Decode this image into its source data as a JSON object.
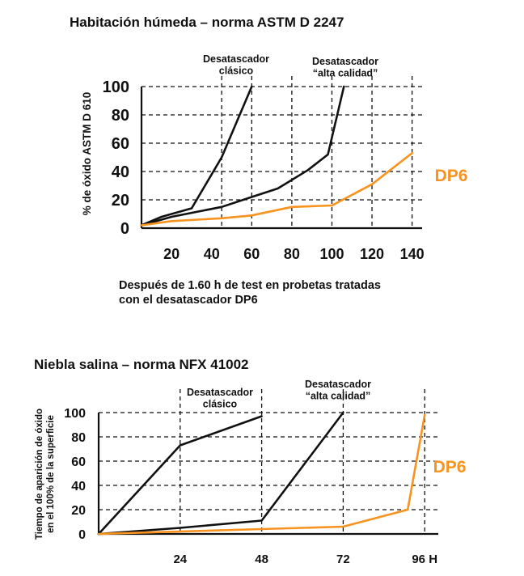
{
  "colors": {
    "dark": "#111111",
    "dp6": "#f7931e"
  },
  "chart_data": [
    {
      "type": "line",
      "title": "Habitación húmeda – norma ASTM D 2247",
      "ylabel": "% de óxido ASTM D 610",
      "xlabel_lines": [
        "Después de 1.60 h de test en probetas tratadas",
        "con el desatascador DP6"
      ],
      "x_ticks": [
        "20",
        "40",
        "60",
        "80",
        "100",
        "120",
        "140"
      ],
      "y_ticks": [
        "0",
        "20",
        "40",
        "60",
        "80",
        "100"
      ],
      "xlim": [
        5,
        145
      ],
      "ylim": [
        0,
        100
      ],
      "grid": true,
      "series": [
        {
          "name_lines": [
            "Desatascador",
            "clásico"
          ],
          "color": "#111111",
          "points": [
            [
              5,
              2
            ],
            [
              15,
              8
            ],
            [
              30,
              14
            ],
            [
              45,
              50
            ],
            [
              60,
              100
            ]
          ]
        },
        {
          "name_lines": [
            "Desatascador",
            "“alta calidad”"
          ],
          "color": "#111111",
          "points": [
            [
              5,
              2
            ],
            [
              20,
              8
            ],
            [
              45,
              15
            ],
            [
              60,
              22
            ],
            [
              73,
              28
            ],
            [
              88,
              41
            ],
            [
              98,
              52
            ],
            [
              106,
              100
            ]
          ]
        },
        {
          "name_lines": [
            "DP6"
          ],
          "color": "#f7931e",
          "points": [
            [
              5,
              2
            ],
            [
              20,
              5
            ],
            [
              45,
              7
            ],
            [
              60,
              9
            ],
            [
              80,
              15
            ],
            [
              100,
              16
            ],
            [
              120,
              31
            ],
            [
              140,
              53
            ]
          ]
        }
      ]
    },
    {
      "type": "line",
      "title": "Niebla salina – norma NFX 41002",
      "ylabel_lines": [
        "Tiempo de aparición de óxido",
        "en el 100% de la superficie"
      ],
      "x_ticks": [
        "24",
        "48",
        "72",
        "96 H"
      ],
      "y_ticks": [
        "0",
        "20",
        "40",
        "60",
        "80",
        "100"
      ],
      "xlim": [
        0,
        100
      ],
      "ylim": [
        0,
        100
      ],
      "grid": true,
      "series": [
        {
          "name_lines": [
            "Desatascador",
            "clásico"
          ],
          "color": "#111111",
          "points": [
            [
              0,
              0
            ],
            [
              24,
              73
            ],
            [
              48,
              97
            ]
          ]
        },
        {
          "name_lines": [
            "Desatascador",
            "“alta calidad”"
          ],
          "color": "#111111",
          "points": [
            [
              0,
              0
            ],
            [
              24,
              5
            ],
            [
              48,
              11
            ],
            [
              72,
              100
            ]
          ]
        },
        {
          "name_lines": [
            "DP6"
          ],
          "color": "#f7931e",
          "points": [
            [
              0,
              0
            ],
            [
              48,
              4
            ],
            [
              72,
              6
            ],
            [
              91,
              20
            ],
            [
              96,
              98
            ]
          ]
        }
      ]
    }
  ]
}
